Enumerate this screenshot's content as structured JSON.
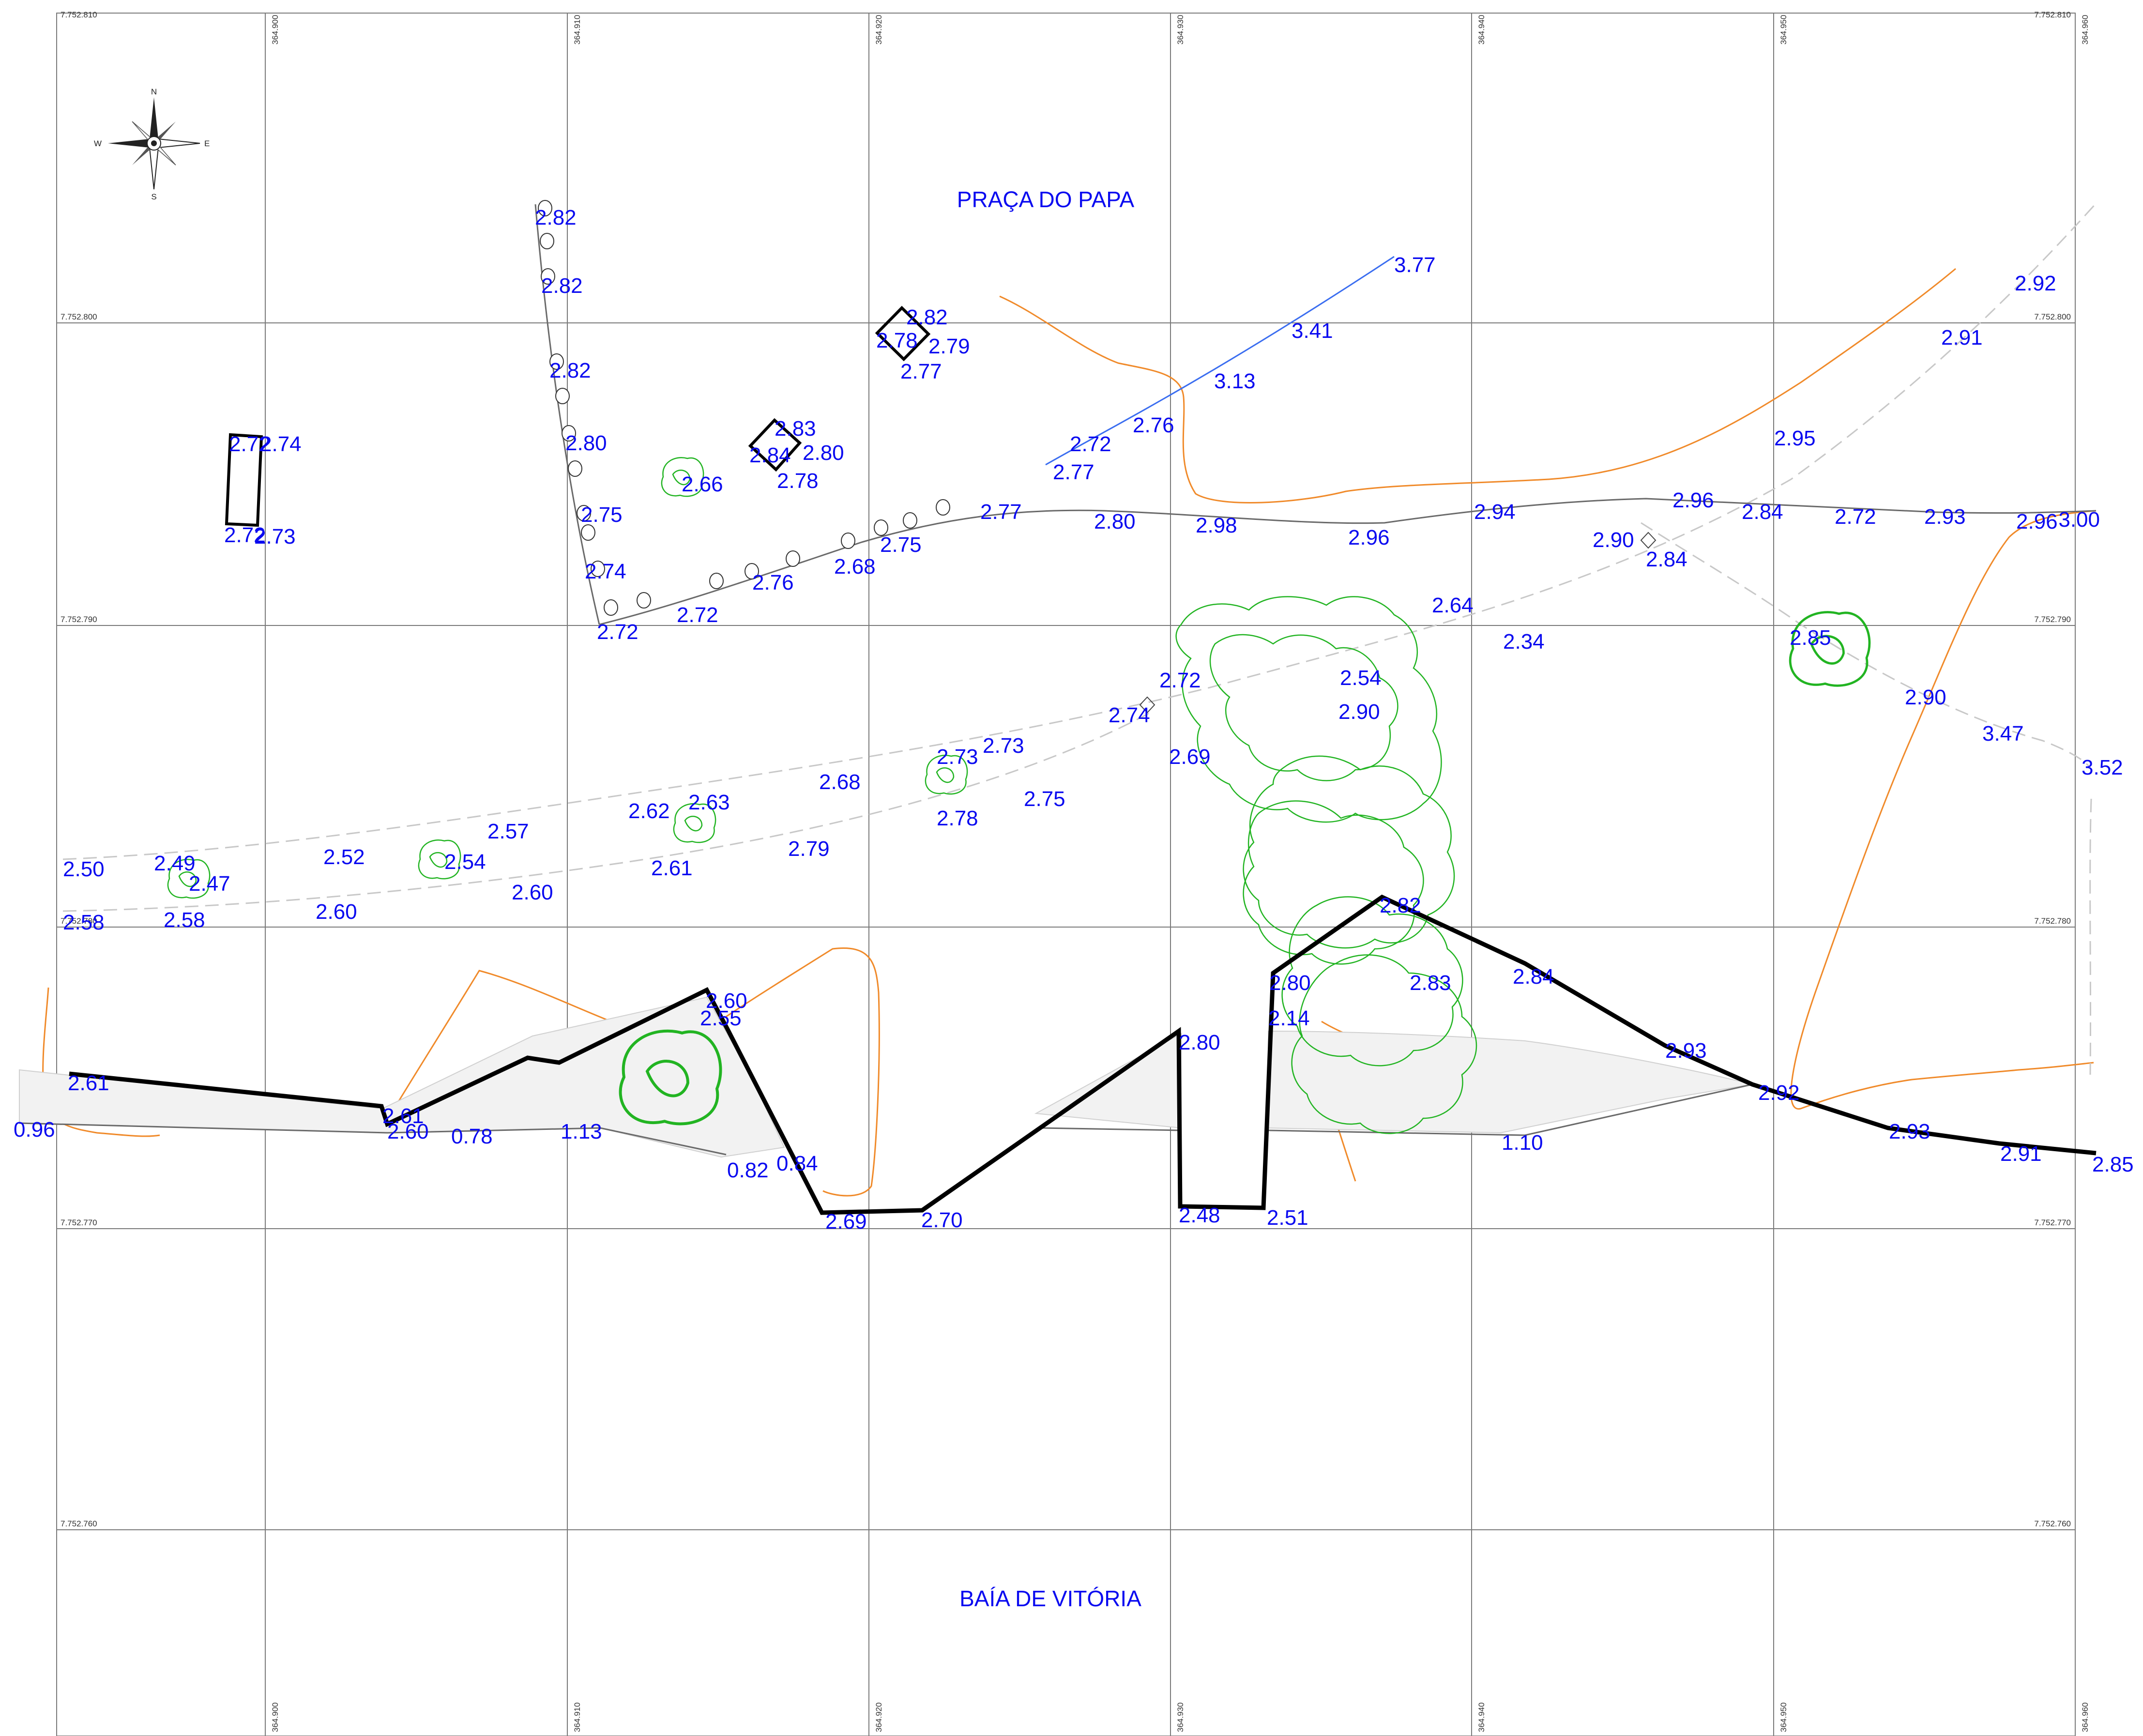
{
  "places": {
    "praca": "PRAÇA DO PAPA",
    "baia": "BAÍA DE VITÓRIA"
  },
  "compass": {
    "n": "N",
    "s": "S",
    "e": "E",
    "w": "W"
  },
  "grid": {
    "northings": [
      "7.752.810",
      "7.752.800",
      "7.752.790",
      "7.752.780",
      "7.752.770",
      "7.752.760"
    ],
    "eastings": [
      "364.900",
      "364.910",
      "364.920",
      "364.930",
      "364.940",
      "364.950",
      "364.960"
    ]
  },
  "elevations": [
    "2.82",
    "2.82",
    "2.82",
    "2.80",
    "2.75",
    "2.74",
    "2.72",
    "2.72",
    "2.76",
    "2.68",
    "2.75",
    "2.66",
    "2.83",
    "2.84",
    "2.80",
    "2.78",
    "2.82",
    "2.78",
    "2.79",
    "2.77",
    "2.72",
    "2.74",
    "2.72",
    "2.73",
    "3.77",
    "3.41",
    "3.13",
    "2.76",
    "2.72",
    "2.77",
    "2.77",
    "2.80",
    "2.98",
    "2.96",
    "2.94",
    "2.96",
    "2.84",
    "2.72",
    "2.93",
    "2.96",
    "3.00",
    "2.92",
    "2.91",
    "2.95",
    "2.90",
    "2.84",
    "2.64",
    "2.34",
    "2.85",
    "2.90",
    "3.47",
    "3.52",
    "2.72",
    "2.74",
    "2.69",
    "2.54",
    "2.90",
    "2.73",
    "2.73",
    "2.75",
    "2.68",
    "2.78",
    "2.79",
    "2.62",
    "2.63",
    "2.61",
    "2.57",
    "2.54",
    "2.60",
    "2.52",
    "2.50",
    "2.49",
    "2.47",
    "2.58",
    "2.58",
    "2.60",
    "2.82",
    "2.80",
    "2.83",
    "2.84",
    "2.14",
    "2.93",
    "2.92",
    "2.93",
    "2.91",
    "2.85",
    "2.60",
    "2.55",
    "2.61",
    "0.96",
    "2.61",
    "2.60",
    "0.78",
    "1.13",
    "0.82",
    "0.84",
    "2.69",
    "2.70",
    "2.80",
    "2.48",
    "2.51",
    "1.10"
  ],
  "colors": {
    "grid": "#7a7a7a",
    "labels": "#0a0af0",
    "shoreline": "#000000",
    "contour": "#f08a2a",
    "vegetation": "#22b422",
    "profile": "#3a6df0",
    "dashed": "#c8c8c8"
  }
}
